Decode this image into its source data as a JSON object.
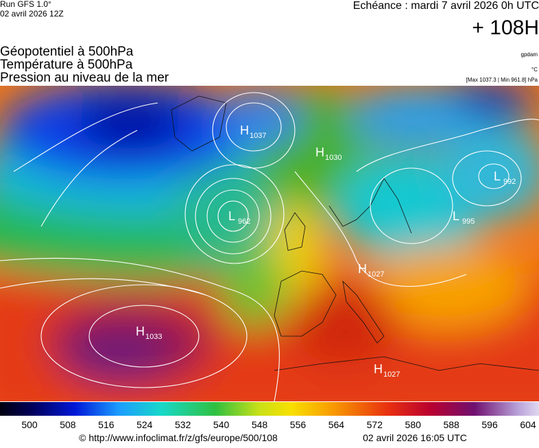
{
  "header": {
    "run": "Run GFS 1.0°",
    "run_date": "02 avril 2026 12Z",
    "forecast": "Echéance : mardi 7 avril 2026 0h UTC",
    "lead": "+ 108H",
    "fields": [
      "Géopotentiel à 500hPa",
      "Température à 500hPa",
      "Pression au niveau de la mer"
    ],
    "unit_geo": "gpdam",
    "unit_temp": "°C",
    "pressure_range": "[Max 1037.3 | Min 961.8] hPa"
  },
  "centers": [
    {
      "letter": "H",
      "value": 1037
    },
    {
      "letter": "H",
      "value": 1030
    },
    {
      "letter": "L",
      "value": 962
    },
    {
      "letter": "L",
      "value": 992
    },
    {
      "letter": "L",
      "value": 995
    },
    {
      "letter": "H",
      "value": 1027
    },
    {
      "letter": "H",
      "value": 1033
    },
    {
      "letter": "H",
      "value": 1027
    }
  ],
  "legend": {
    "ticks": [
      500,
      508,
      516,
      524,
      532,
      540,
      548,
      556,
      564,
      572,
      580,
      588,
      596,
      604
    ]
  },
  "footer": {
    "source": "© http://www.infoclimat.fr/z/gfs/europe/500/108",
    "generated": "02 avril 2026 16:05 UTC"
  }
}
